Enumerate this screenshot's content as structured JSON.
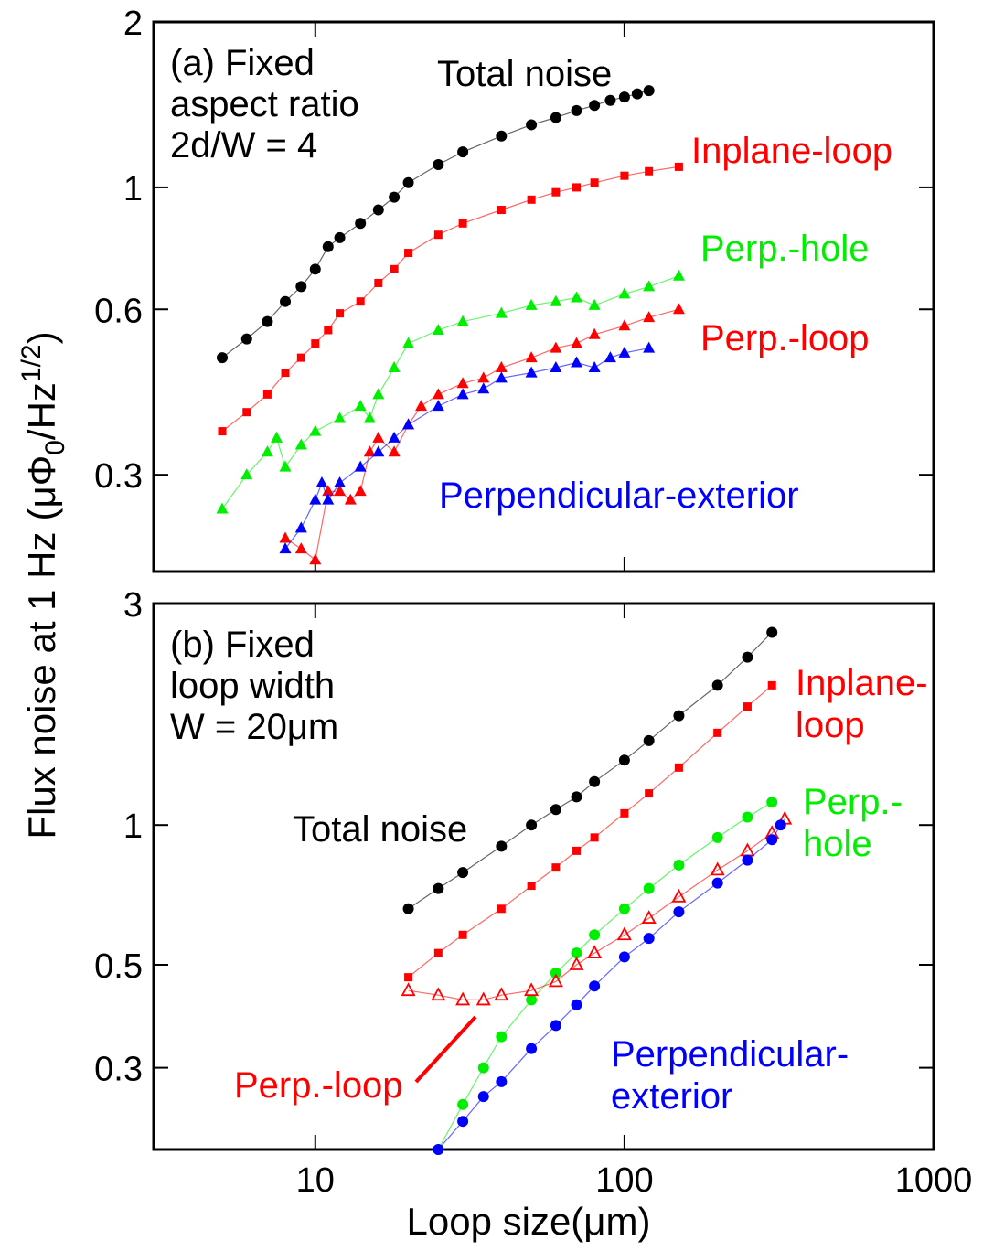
{
  "figure": {
    "ylabel": "Flux noise at 1 Hz",
    "ylabel_units": "(μΦ",
    "ylabel_units_sub": "0",
    "ylabel_units_mid": "/Hz",
    "ylabel_units_sup": "1/2",
    "ylabel_units_end": ")",
    "xlabel": "Loop size(μm)"
  },
  "chart_data": [
    {
      "type": "scatter",
      "panel": "a",
      "x_scale": "log",
      "y_scale": "log",
      "xlim": [
        3,
        1000
      ],
      "ylim": [
        0.2,
        2
      ],
      "xticks": [
        10,
        100,
        1000
      ],
      "xtick_labels": [
        "",
        "",
        ""
      ],
      "yticks": [
        0.3,
        0.6,
        1,
        2
      ],
      "ytick_labels": [
        "0.3",
        "0.6",
        "1",
        "2"
      ],
      "annotation": [
        "(a) Fixed",
        "aspect ratio",
        "2d/W = 4"
      ],
      "series": [
        {
          "name": "Total noise",
          "color": "#000000",
          "marker": "circle",
          "x": [
            5,
            6,
            7,
            8,
            9,
            10,
            11,
            12,
            14,
            16,
            18,
            20,
            25,
            30,
            40,
            50,
            60,
            70,
            80,
            90,
            100,
            110,
            120
          ],
          "y": [
            0.49,
            0.53,
            0.57,
            0.62,
            0.66,
            0.71,
            0.78,
            0.81,
            0.86,
            0.91,
            0.96,
            1.02,
            1.1,
            1.16,
            1.24,
            1.3,
            1.34,
            1.38,
            1.41,
            1.44,
            1.46,
            1.48,
            1.5
          ]
        },
        {
          "name": "Inplane-loop",
          "color": "#ff0000",
          "marker": "square",
          "x": [
            5,
            6,
            7,
            8,
            9,
            10,
            11,
            12,
            14,
            16,
            18,
            20,
            25,
            30,
            40,
            50,
            60,
            70,
            80,
            100,
            120,
            150
          ],
          "y": [
            0.36,
            0.39,
            0.42,
            0.46,
            0.49,
            0.52,
            0.55,
            0.59,
            0.62,
            0.67,
            0.71,
            0.76,
            0.82,
            0.86,
            0.91,
            0.95,
            0.98,
            1.0,
            1.02,
            1.05,
            1.07,
            1.09
          ]
        },
        {
          "name": "Perp.-hole",
          "color": "#00ee00",
          "marker": "triangle",
          "x": [
            5,
            6,
            7,
            7.5,
            8,
            9,
            10,
            12,
            14,
            15,
            16,
            18,
            20,
            25,
            30,
            40,
            50,
            60,
            70,
            80,
            100,
            120,
            150
          ],
          "y": [
            0.26,
            0.3,
            0.33,
            0.35,
            0.31,
            0.34,
            0.36,
            0.38,
            0.4,
            0.38,
            0.42,
            0.47,
            0.52,
            0.55,
            0.57,
            0.59,
            0.61,
            0.62,
            0.63,
            0.61,
            0.64,
            0.66,
            0.69
          ]
        },
        {
          "name": "Perp.-loop",
          "color": "#ff0000",
          "marker": "triangle",
          "x": [
            8,
            9,
            10,
            11,
            12,
            13,
            14,
            15,
            16,
            18,
            20,
            22,
            25,
            30,
            35,
            40,
            50,
            60,
            70,
            80,
            100,
            120,
            150
          ],
          "y": [
            0.23,
            0.22,
            0.21,
            0.28,
            0.28,
            0.27,
            0.28,
            0.33,
            0.35,
            0.33,
            0.37,
            0.4,
            0.42,
            0.44,
            0.45,
            0.47,
            0.49,
            0.51,
            0.52,
            0.54,
            0.56,
            0.58,
            0.6
          ]
        },
        {
          "name": "Perpendicular-exterior",
          "color": "#0000ff",
          "marker": "triangle",
          "x": [
            8,
            9,
            10,
            10.5,
            11,
            12,
            14,
            16,
            18,
            20,
            25,
            30,
            35,
            40,
            50,
            60,
            70,
            80,
            90,
            100,
            120
          ],
          "y": [
            0.22,
            0.24,
            0.27,
            0.29,
            0.27,
            0.29,
            0.31,
            0.33,
            0.35,
            0.37,
            0.4,
            0.42,
            0.43,
            0.45,
            0.46,
            0.47,
            0.48,
            0.47,
            0.49,
            0.5,
            0.51
          ]
        }
      ]
    },
    {
      "type": "scatter",
      "panel": "b",
      "x_scale": "log",
      "y_scale": "log",
      "xlim": [
        3,
        1000
      ],
      "ylim": [
        0.2,
        3
      ],
      "xticks": [
        10,
        100,
        1000
      ],
      "xtick_labels": [
        "10",
        "100",
        "1000"
      ],
      "yticks": [
        0.3,
        0.5,
        1,
        3
      ],
      "ytick_labels": [
        "0.3",
        "0.5",
        "1",
        "3"
      ],
      "annotation": [
        "(b) Fixed",
        "loop width",
        "W = 20μm"
      ],
      "series": [
        {
          "name": "Total noise",
          "color": "#000000",
          "marker": "circle",
          "x": [
            20,
            25,
            30,
            40,
            50,
            60,
            70,
            80,
            100,
            120,
            150,
            200,
            250,
            300
          ],
          "y": [
            0.66,
            0.73,
            0.79,
            0.9,
            1.0,
            1.08,
            1.15,
            1.24,
            1.38,
            1.52,
            1.72,
            2.0,
            2.3,
            2.6
          ]
        },
        {
          "name": "Inplane-loop",
          "color": "#ff0000",
          "marker": "square",
          "x": [
            20,
            25,
            30,
            40,
            50,
            60,
            70,
            80,
            100,
            120,
            150,
            200,
            250,
            300
          ],
          "y": [
            0.47,
            0.53,
            0.58,
            0.66,
            0.74,
            0.81,
            0.88,
            0.94,
            1.06,
            1.17,
            1.33,
            1.58,
            1.8,
            2.0
          ]
        },
        {
          "name": "Perp.-hole",
          "color": "#00ee00",
          "marker": "circle",
          "x": [
            25,
            30,
            35,
            40,
            50,
            60,
            70,
            80,
            100,
            120,
            150,
            200,
            250,
            300
          ],
          "y": [
            0.2,
            0.25,
            0.3,
            0.35,
            0.42,
            0.48,
            0.53,
            0.58,
            0.66,
            0.73,
            0.82,
            0.94,
            1.04,
            1.12
          ]
        },
        {
          "name": "Perp.-loop",
          "color": "#ff0000",
          "marker": "open-triangle",
          "x": [
            20,
            25,
            30,
            35,
            40,
            50,
            60,
            70,
            80,
            100,
            120,
            150,
            200,
            250,
            300,
            330
          ],
          "y": [
            0.44,
            0.43,
            0.42,
            0.42,
            0.43,
            0.44,
            0.46,
            0.5,
            0.53,
            0.58,
            0.63,
            0.7,
            0.8,
            0.88,
            0.96,
            1.03
          ]
        },
        {
          "name": "Perpendicular-exterior",
          "color": "#0000ff",
          "marker": "circle",
          "x": [
            25,
            30,
            35,
            40,
            50,
            60,
            70,
            80,
            100,
            120,
            150,
            200,
            250,
            300,
            320
          ],
          "y": [
            0.2,
            0.23,
            0.26,
            0.28,
            0.33,
            0.37,
            0.41,
            0.45,
            0.52,
            0.57,
            0.65,
            0.75,
            0.84,
            0.93,
            1.0
          ]
        }
      ]
    }
  ]
}
